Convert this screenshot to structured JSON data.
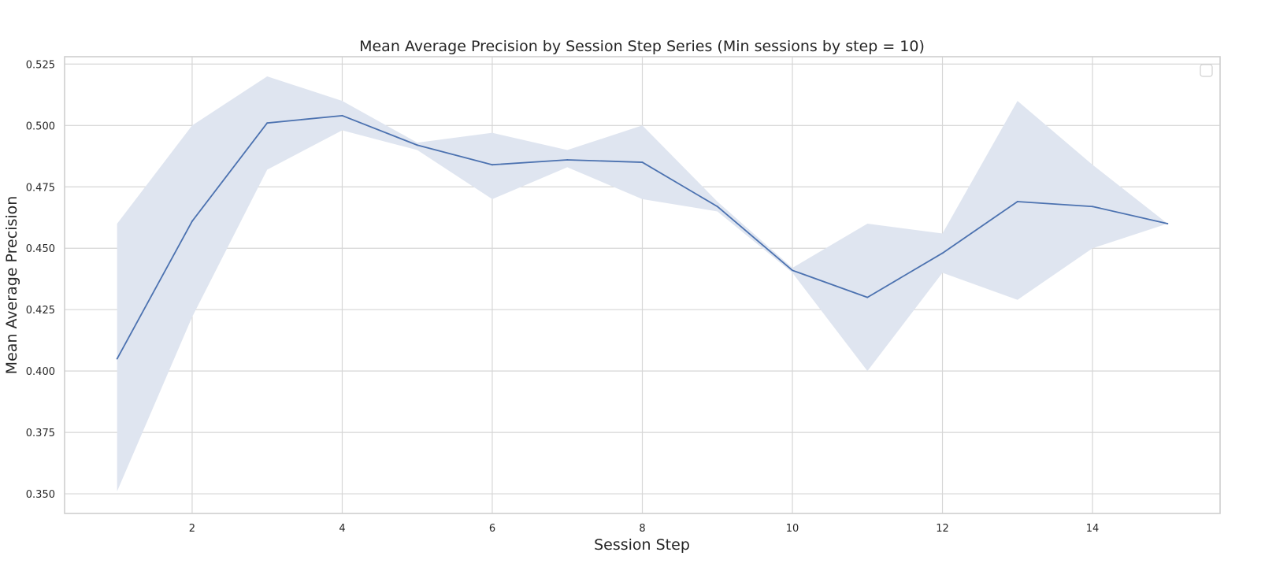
{
  "chart_data": {
    "type": "line",
    "title": "Mean Average Precision by Session Step Series (Min sessions by step = 10)",
    "xlabel": "Session Step",
    "ylabel": "Mean Average Precision",
    "xlim": [
      0.3,
      15.7
    ],
    "ylim": [
      0.342,
      0.528
    ],
    "x_ticks": [
      2,
      4,
      6,
      8,
      10,
      12,
      14
    ],
    "y_ticks": [
      0.35,
      0.375,
      0.4,
      0.425,
      0.45,
      0.475,
      0.5,
      0.525
    ],
    "y_tick_labels": [
      "0.350",
      "0.375",
      "0.400",
      "0.425",
      "0.450",
      "0.475",
      "0.500",
      "0.525"
    ],
    "grid": true,
    "legend": "top-right (empty)",
    "colors": {
      "line": "#4c72b0",
      "band": "#dfe5f0",
      "grid": "#d6d6d6"
    },
    "series": [
      {
        "x": [
          1,
          2,
          3,
          4,
          5,
          6,
          7,
          8,
          9,
          10,
          11,
          12,
          13,
          14,
          15
        ],
        "y": [
          0.405,
          0.461,
          0.501,
          0.504,
          0.492,
          0.484,
          0.486,
          0.485,
          0.467,
          0.441,
          0.43,
          0.448,
          0.469,
          0.467,
          0.46
        ],
        "lower": [
          0.351,
          0.422,
          0.482,
          0.498,
          0.49,
          0.47,
          0.483,
          0.47,
          0.465,
          0.44,
          0.4,
          0.44,
          0.429,
          0.45,
          0.46
        ],
        "upper": [
          0.46,
          0.5,
          0.52,
          0.51,
          0.493,
          0.497,
          0.49,
          0.5,
          0.469,
          0.442,
          0.46,
          0.456,
          0.51,
          0.484,
          0.46
        ]
      }
    ]
  }
}
